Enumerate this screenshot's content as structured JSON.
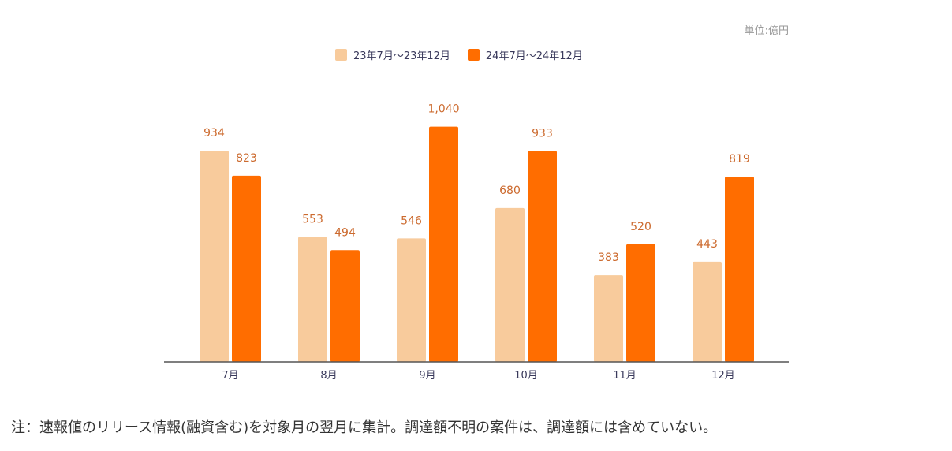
{
  "chart_data": {
    "type": "bar",
    "unit_label": "単位:億円",
    "categories": [
      "7月",
      "8月",
      "9月",
      "10月",
      "11月",
      "12月"
    ],
    "series": [
      {
        "name": "23年7月〜23年12月",
        "color": "#f8cb9c",
        "values": [
          934,
          553,
          546,
          680,
          383,
          443
        ]
      },
      {
        "name": "24年7月〜24年12月",
        "color": "#ff6d00",
        "values": [
          823,
          494,
          1040,
          933,
          520,
          819
        ]
      }
    ],
    "data_labels": [
      [
        "934",
        "553",
        "546",
        "680",
        "383",
        "443"
      ],
      [
        "823",
        "494",
        "1,040",
        "933",
        "520",
        "819"
      ]
    ],
    "ylim": [
      0,
      1100
    ],
    "grid": false,
    "legend": "top-center",
    "label_color": "#cc6a2e",
    "axis_color": "#555555"
  },
  "note": "注：速報値のリリース情報(融資含む)を対象月の翌月に集計。調達額不明の案件は、調達額には含めていない。"
}
